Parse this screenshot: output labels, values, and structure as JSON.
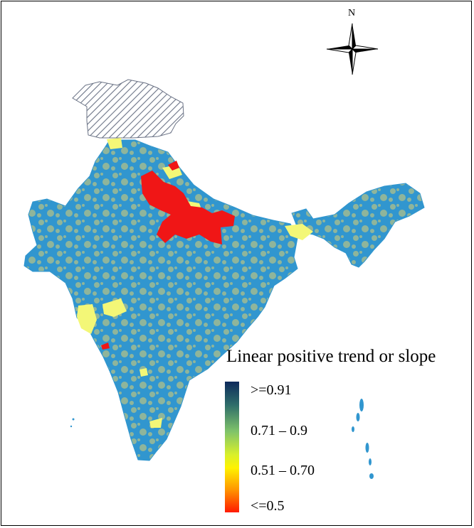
{
  "compass": {
    "north_label": "N"
  },
  "legend": {
    "title": "Linear positive trend or slope",
    "classes": [
      {
        "label": ">=0.91",
        "color": "#0d2a5c"
      },
      {
        "label": "0.71 – 0.9",
        "color": "#7fc36a"
      },
      {
        "label": "0.51 – 0.70",
        "color": "#fff200"
      },
      {
        "label": "<=0.5",
        "color": "#ff1a00"
      }
    ]
  },
  "map_colors": {
    "blue": "#3196cf",
    "sage": "#8fb59b",
    "yellow": "#f3f777",
    "red": "#f01616",
    "hatch": "#6b7386"
  }
}
